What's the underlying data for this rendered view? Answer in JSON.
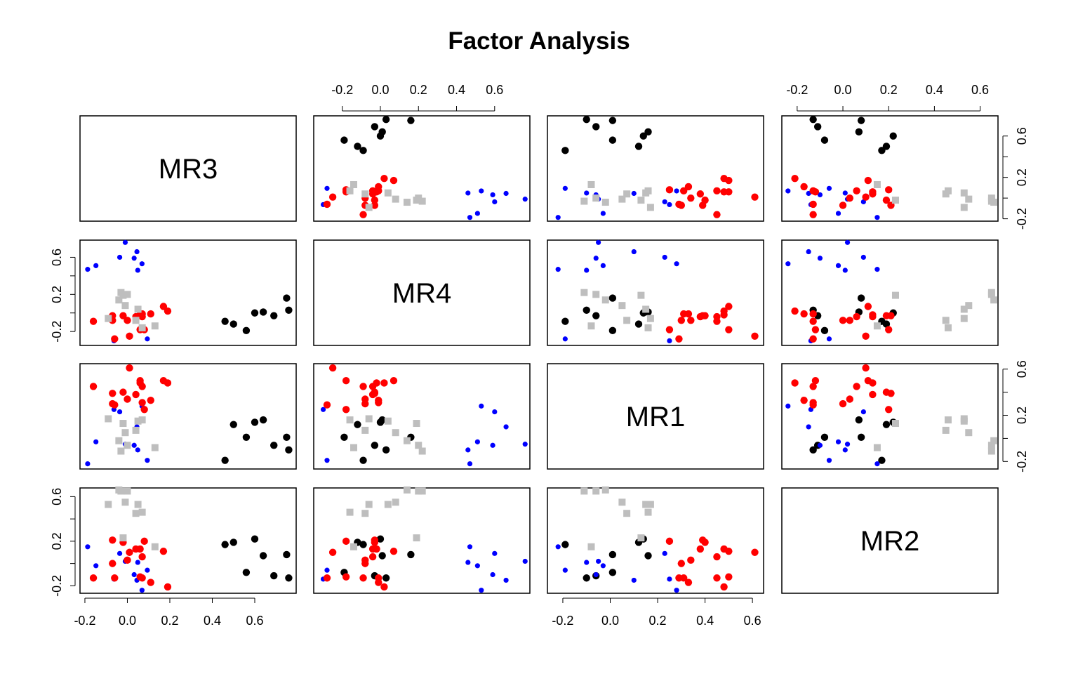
{
  "chart_data": {
    "type": "scatter-matrix",
    "title": "Factor Analysis",
    "variables": [
      "MR3",
      "MR4",
      "MR1",
      "MR2"
    ],
    "lims": {
      "MR3": [
        -0.223,
        0.795
      ],
      "MR4": [
        -0.35,
        0.785
      ],
      "MR1": [
        -0.265,
        0.647
      ],
      "MR2": [
        -0.267,
        0.678
      ]
    },
    "x_ticks": [
      -0.2,
      0.0,
      0.2,
      0.4,
      0.6
    ],
    "x_tick_labels": [
      "-0.2",
      "0.0",
      "0.2",
      "0.4",
      "0.6"
    ],
    "y_ticks": [
      -0.2,
      0.0,
      0.2,
      0.4,
      0.6
    ],
    "y_tick_labels": [
      "-0.2",
      "",
      "0.2",
      "",
      "0.6"
    ],
    "grid": false,
    "groups": [
      {
        "color": "#000000",
        "marker": "circle",
        "size": "large",
        "points": [
          [
            0.46,
            -0.09,
            -0.19,
            0.17
          ],
          [
            0.5,
            -0.12,
            0.12,
            0.19
          ],
          [
            0.56,
            -0.19,
            0.01,
            -0.08
          ],
          [
            0.6,
            0.0,
            0.14,
            0.22
          ],
          [
            0.64,
            0.01,
            0.16,
            0.07
          ],
          [
            0.69,
            -0.03,
            -0.06,
            -0.11
          ],
          [
            0.75,
            0.16,
            0.01,
            0.08
          ],
          [
            0.76,
            0.03,
            -0.1,
            -0.13
          ]
        ]
      },
      {
        "color": "#0000ff",
        "marker": "circle",
        "size": "small",
        "points": [
          [
            -0.01,
            0.76,
            -0.05,
            0.02
          ],
          [
            0.045,
            0.66,
            0.1,
            -0.15
          ],
          [
            -0.036,
            0.6,
            0.23,
            0.09
          ],
          [
            0.032,
            0.59,
            -0.06,
            -0.1
          ],
          [
            0.069,
            0.53,
            0.28,
            -0.24
          ],
          [
            -0.148,
            0.51,
            -0.03,
            -0.02
          ],
          [
            -0.187,
            0.47,
            -0.22,
            0.15
          ],
          [
            0.049,
            0.46,
            -0.1,
            0.01
          ],
          [
            -0.063,
            -0.3,
            0.25,
            -0.14
          ],
          [
            0.094,
            -0.28,
            -0.19,
            -0.06
          ]
        ]
      },
      {
        "color": "#ff0000",
        "marker": "circle",
        "size": "large",
        "points": [
          [
            -0.16,
            -0.09,
            0.45,
            -0.13
          ],
          [
            -0.07,
            -0.03,
            0.39,
            0.21
          ],
          [
            -0.07,
            -0.08,
            0.3,
            0.0
          ],
          [
            -0.02,
            -0.03,
            0.4,
            0.19
          ],
          [
            0.0,
            -0.08,
            0.34,
            0.03
          ],
          [
            0.04,
            -0.04,
            0.38,
            0.13
          ],
          [
            0.06,
            -0.02,
            0.48,
            0.13
          ],
          [
            0.07,
            -0.01,
            0.31,
            -0.13
          ],
          [
            0.07,
            -0.04,
            0.45,
            0.06
          ],
          [
            0.11,
            -0.01,
            0.33,
            -0.17
          ],
          [
            0.17,
            0.07,
            0.5,
            0.11
          ],
          [
            0.19,
            0.02,
            0.48,
            -0.21
          ],
          [
            -0.06,
            -0.28,
            0.29,
            -0.13
          ],
          [
            0.01,
            -0.25,
            0.61,
            0.1
          ],
          [
            0.06,
            -0.18,
            0.5,
            -0.12
          ],
          [
            0.08,
            -0.18,
            0.25,
            0.2
          ]
        ]
      },
      {
        "color": "#bebebe",
        "marker": "square",
        "size": "large",
        "points": [
          [
            -0.03,
            0.22,
            -0.11,
            0.65
          ],
          [
            0.0,
            0.2,
            -0.06,
            0.65
          ],
          [
            -0.04,
            0.14,
            -0.02,
            0.66
          ],
          [
            -0.01,
            0.08,
            0.05,
            0.55
          ],
          [
            0.05,
            0.04,
            0.15,
            0.53
          ],
          [
            -0.09,
            -0.06,
            0.17,
            0.53
          ],
          [
            0.04,
            -0.08,
            0.07,
            0.45
          ],
          [
            0.07,
            -0.16,
            0.16,
            0.46
          ],
          [
            0.13,
            -0.14,
            -0.08,
            0.15
          ],
          [
            -0.02,
            0.19,
            0.13,
            0.23
          ]
        ]
      }
    ]
  }
}
